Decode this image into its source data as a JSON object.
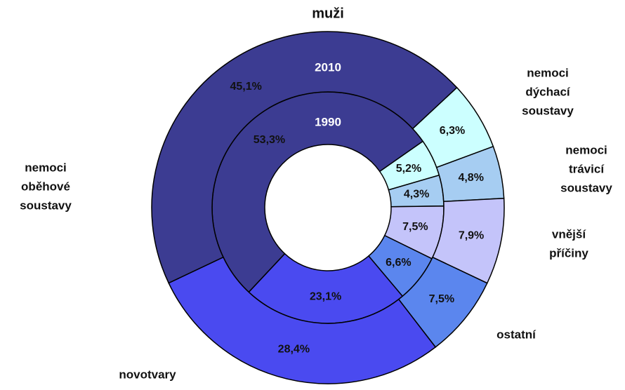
{
  "chart_data": {
    "type": "nested-donut",
    "title": "muži",
    "categories": [
      [
        "nemoci",
        "dýchací",
        "soustavy"
      ],
      [
        "nemoci",
        "trávicí",
        "soustavy"
      ],
      [
        "vnější",
        "příčiny"
      ],
      [
        "ostatní"
      ],
      [
        "novotvary"
      ],
      [
        "nemoci",
        "oběhové",
        "soustavy"
      ]
    ],
    "colors": [
      "#ccffff",
      "#a6cdf2",
      "#c4c4fa",
      "#5b86ee",
      "#4a4af0",
      "#3c3c92"
    ],
    "rings": [
      {
        "name": "1990",
        "values": [
          5.2,
          4.3,
          7.5,
          6.6,
          23.1,
          53.3
        ],
        "value_labels": [
          "5,2%",
          "4,3%",
          "7,5%",
          "6,6%",
          "23,1%",
          "53,3%"
        ]
      },
      {
        "name": "2010",
        "values": [
          6.3,
          4.8,
          7.9,
          7.5,
          28.4,
          45.1
        ],
        "value_labels": [
          "6,3%",
          "4,8%",
          "7,9%",
          "7,5%",
          "28,4%",
          "45,1%"
        ]
      }
    ]
  }
}
